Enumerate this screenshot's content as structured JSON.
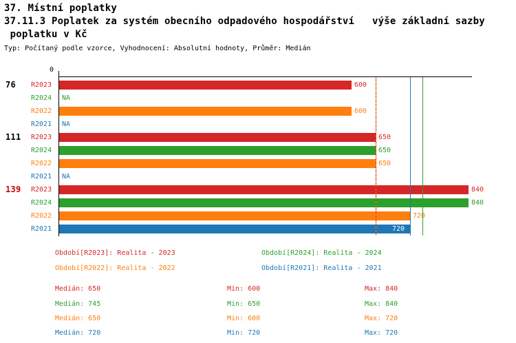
{
  "header": {
    "title_line1": "37. Místní poplatky",
    "title_line2": "37.11.3 Poplatek za systém obecního odpadového hospodářství   výše základní sazby",
    "title_line3": " poplatku v Kč",
    "subtitle": "Typ: Počítaný podle vzorce, Vyhodnocení: Absolutní hodnoty, Průměr: Medián"
  },
  "colors": {
    "r2023": "#d62728",
    "r2024": "#2ca02c",
    "r2022": "#ff7f0e",
    "r2021": "#1f77b4",
    "axis": "#000000",
    "highlight_row": "#cc0000"
  },
  "chart_data": {
    "type": "bar",
    "orientation": "horizontal",
    "xlim": [
      0,
      840
    ],
    "origin_tick_label": "0",
    "grid": false,
    "legend_position": "bottom",
    "groups": [
      {
        "label": "76",
        "highlighted": false,
        "bars": [
          {
            "series": "R2023",
            "value": 600,
            "display": "600"
          },
          {
            "series": "R2024",
            "value": null,
            "display": "NA"
          },
          {
            "series": "R2022",
            "value": 600,
            "display": "600"
          },
          {
            "series": "R2021",
            "value": null,
            "display": "NA"
          }
        ]
      },
      {
        "label": "111",
        "highlighted": false,
        "bars": [
          {
            "series": "R2023",
            "value": 650,
            "display": "650"
          },
          {
            "series": "R2024",
            "value": 650,
            "display": "650"
          },
          {
            "series": "R2022",
            "value": 650,
            "display": "650"
          },
          {
            "series": "R2021",
            "value": null,
            "display": "NA"
          }
        ]
      },
      {
        "label": "139",
        "highlighted": true,
        "bars": [
          {
            "series": "R2023",
            "value": 840,
            "display": "840"
          },
          {
            "series": "R2024",
            "value": 840,
            "display": "840"
          },
          {
            "series": "R2022",
            "value": 720,
            "display": "720"
          },
          {
            "series": "R2021",
            "value": 720,
            "display": "720"
          }
        ]
      }
    ],
    "reference_lines": [
      {
        "series": "R2023",
        "value": 650,
        "style": "solid"
      },
      {
        "series": "R2022",
        "value": 650,
        "style": "dashed"
      },
      {
        "series": "R2021",
        "value": 720,
        "style": "solid"
      },
      {
        "series": "R2024",
        "value": 745,
        "style": "solid"
      }
    ],
    "series_stats": [
      {
        "series": "R2023",
        "median": 650,
        "min": 600,
        "max": 840
      },
      {
        "series": "R2024",
        "median": 745,
        "min": 650,
        "max": 840
      },
      {
        "series": "R2022",
        "median": 650,
        "min": 600,
        "max": 720
      },
      {
        "series": "R2021",
        "median": 720,
        "min": 720,
        "max": 720
      }
    ]
  },
  "legend": {
    "items": [
      {
        "series": "R2023",
        "label": "Období[R2023]: Realita - 2023"
      },
      {
        "series": "R2024",
        "label": "Období[R2024]: Realita - 2024"
      },
      {
        "series": "R2022",
        "label": "Období[R2022]: Realita - 2022"
      },
      {
        "series": "R2021",
        "label": "Období[R2021]: Realita - 2021"
      }
    ]
  },
  "stats_rows": [
    {
      "series": "R2023",
      "median": "Medián: 650",
      "min": "Min: 600",
      "max": "Max: 840"
    },
    {
      "series": "R2024",
      "median": "Medián: 745",
      "min": "Min: 650",
      "max": "Max: 840"
    },
    {
      "series": "R2022",
      "median": "Medián: 650",
      "min": "Min: 600",
      "max": "Max: 720"
    },
    {
      "series": "R2021",
      "median": "Medián: 720",
      "min": "Min: 720",
      "max": "Max: 720"
    }
  ]
}
